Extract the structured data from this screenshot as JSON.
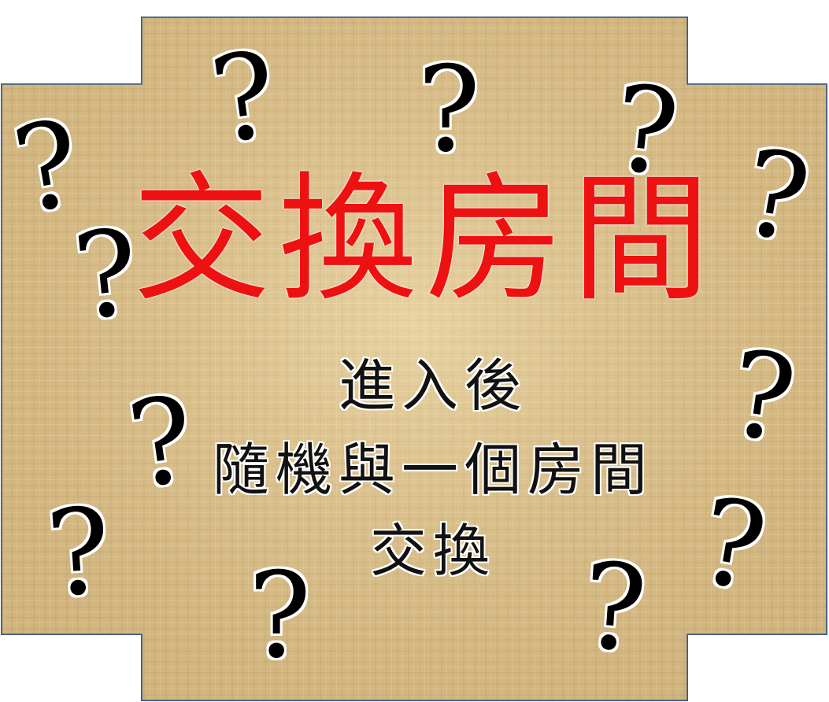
{
  "title": "交換房間",
  "description_lines": [
    "進入後",
    "隨機與一個房間",
    "交換"
  ],
  "decoration": {
    "glyph": "?",
    "icon": "question-mark-icon"
  },
  "colors": {
    "title": "#ee1111",
    "text": "#111111",
    "parchment": "#d9bf8c",
    "border": "#3b5b8a"
  }
}
